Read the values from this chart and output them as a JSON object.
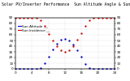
{
  "title": "Solar PV/Inverter Performance  Sun Altitude Angle & Sun Incidence Angle on PV Panels",
  "x_values": [
    0,
    1,
    2,
    3,
    4,
    5,
    6,
    7,
    8,
    9,
    10,
    11,
    12,
    13,
    14,
    15,
    16,
    17,
    18,
    19,
    20,
    21,
    22,
    23,
    24
  ],
  "sun_altitude": [
    0,
    0,
    0,
    0,
    0,
    0,
    2,
    10,
    22,
    34,
    44,
    51,
    53,
    50,
    43,
    33,
    21,
    9,
    1,
    0,
    0,
    0,
    0,
    0,
    0
  ],
  "sun_incidence": [
    90,
    90,
    90,
    90,
    90,
    90,
    85,
    75,
    62,
    50,
    40,
    33,
    30,
    33,
    40,
    51,
    63,
    76,
    86,
    90,
    90,
    90,
    90,
    90,
    90
  ],
  "altitude_color": "#0000dd",
  "incidence_color": "#dd0000",
  "bg_color": "#ffffff",
  "grid_color": "#aaaaaa",
  "ylim": [
    0,
    90
  ],
  "xlim": [
    0,
    24
  ],
  "xticks": [
    0,
    4,
    8,
    12,
    16,
    20,
    24
  ],
  "yticks": [
    0,
    10,
    20,
    30,
    40,
    50,
    60,
    70,
    80,
    90
  ],
  "title_fontsize": 3.5,
  "tick_fontsize": 3.0,
  "legend_altitude": "Sun Altitude  __",
  "legend_incidence": "Sun Incidence __"
}
